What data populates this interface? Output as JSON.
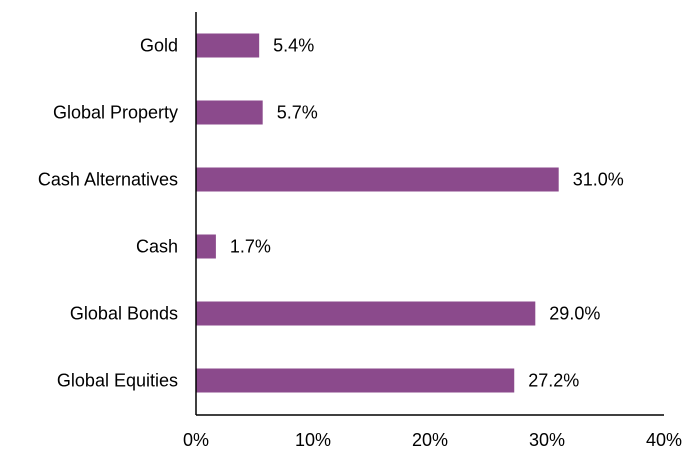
{
  "chart_data": {
    "type": "bar",
    "orientation": "horizontal",
    "categories": [
      "Gold",
      "Global Property",
      "Cash Alternatives",
      "Cash",
      "Global Bonds",
      "Global Equities"
    ],
    "values": [
      5.4,
      5.7,
      31.0,
      1.7,
      29.0,
      27.2
    ],
    "value_labels": [
      "5.4%",
      "5.7%",
      "31.0%",
      "1.7%",
      "29.0%",
      "27.2%"
    ],
    "xlim": [
      0,
      40
    ],
    "xticks": [
      0,
      10,
      20,
      30,
      40
    ],
    "xtick_labels": [
      "0%",
      "10%",
      "20%",
      "30%",
      "40%"
    ],
    "grid": false,
    "legend": "none",
    "bar_color": "#8b4a8c",
    "title": "",
    "xlabel": "",
    "ylabel": ""
  }
}
